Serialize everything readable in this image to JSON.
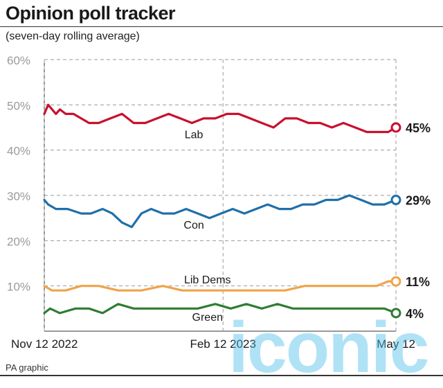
{
  "header": {
    "title": "Opinion poll tracker",
    "subtitle": "(seven-day rolling average)"
  },
  "footer": {
    "source": "PA graphic"
  },
  "watermark": {
    "text": "iconic"
  },
  "colors": {
    "lab": "#c8102e",
    "con": "#1f6fa8",
    "lib": "#f0a34a",
    "green": "#2e7d32"
  },
  "chart_data": {
    "type": "line",
    "title": "Opinion poll tracker",
    "subtitle": "(seven-day rolling average)",
    "ylim": [
      0,
      60
    ],
    "y_ticks": [
      {
        "value": 10,
        "label": "10%"
      },
      {
        "value": 20,
        "label": "20%"
      },
      {
        "value": 30,
        "label": "30%"
      },
      {
        "value": 40,
        "label": "40%"
      },
      {
        "value": 50,
        "label": "50%"
      },
      {
        "value": 60,
        "label": "60%"
      }
    ],
    "x_range": [
      "2022-11-12",
      "2023-05-12"
    ],
    "x_ticks": [
      {
        "date": "2022-11-12",
        "label": "Nov 12 2022"
      },
      {
        "date": "2023-02-12",
        "label": "Feb 12 2023"
      },
      {
        "date": "2023-05-12",
        "label": "May 12"
      }
    ],
    "grid": true,
    "series": [
      {
        "name": "Lab",
        "color": "#c8102e",
        "end_label": "45%",
        "x": [
          "2022-11-12",
          "2022-11-14",
          "2022-11-16",
          "2022-11-18",
          "2022-11-20",
          "2022-11-23",
          "2022-11-27",
          "2022-12-01",
          "2022-12-05",
          "2022-12-10",
          "2022-12-16",
          "2022-12-22",
          "2022-12-28",
          "2023-01-03",
          "2023-01-09",
          "2023-01-15",
          "2023-01-21",
          "2023-01-27",
          "2023-02-02",
          "2023-02-08",
          "2023-02-14",
          "2023-02-20",
          "2023-02-26",
          "2023-03-04",
          "2023-03-10",
          "2023-03-16",
          "2023-03-22",
          "2023-03-28",
          "2023-04-03",
          "2023-04-09",
          "2023-04-15",
          "2023-04-21",
          "2023-04-27",
          "2023-05-03",
          "2023-05-08",
          "2023-05-12"
        ],
        "y": [
          48,
          50,
          49,
          48,
          49,
          48,
          48,
          47,
          46,
          46,
          47,
          48,
          46,
          46,
          47,
          48,
          47,
          46,
          47,
          47,
          48,
          48,
          47,
          46,
          45,
          47,
          47,
          46,
          46,
          45,
          46,
          45,
          44,
          44,
          44,
          45
        ]
      },
      {
        "name": "Con",
        "color": "#1f6fa8",
        "end_label": "29%",
        "x": [
          "2022-11-12",
          "2022-11-14",
          "2022-11-18",
          "2022-11-24",
          "2022-12-01",
          "2022-12-06",
          "2022-12-12",
          "2022-12-17",
          "2022-12-22",
          "2022-12-27",
          "2023-01-01",
          "2023-01-06",
          "2023-01-12",
          "2023-01-18",
          "2023-01-24",
          "2023-01-30",
          "2023-02-05",
          "2023-02-11",
          "2023-02-17",
          "2023-02-23",
          "2023-03-01",
          "2023-03-07",
          "2023-03-13",
          "2023-03-19",
          "2023-03-25",
          "2023-03-31",
          "2023-04-06",
          "2023-04-12",
          "2023-04-18",
          "2023-04-24",
          "2023-04-30",
          "2023-05-06",
          "2023-05-12"
        ],
        "y": [
          29,
          28,
          27,
          27,
          26,
          26,
          27,
          26,
          24,
          23,
          26,
          27,
          26,
          26,
          27,
          26,
          25,
          26,
          27,
          26,
          27,
          28,
          27,
          27,
          28,
          28,
          29,
          29,
          30,
          29,
          28,
          28,
          29
        ]
      },
      {
        "name": "Lib Dems",
        "color": "#f0a34a",
        "end_label": "11%",
        "x": [
          "2022-11-12",
          "2022-11-16",
          "2022-11-23",
          "2022-12-01",
          "2022-12-10",
          "2022-12-20",
          "2023-01-01",
          "2023-01-12",
          "2023-01-22",
          "2023-02-01",
          "2023-02-12",
          "2023-02-24",
          "2023-03-06",
          "2023-03-16",
          "2023-03-26",
          "2023-04-05",
          "2023-04-15",
          "2023-04-25",
          "2023-05-02",
          "2023-05-08",
          "2023-05-12"
        ],
        "y": [
          10,
          9,
          9,
          10,
          10,
          9,
          9,
          10,
          9,
          9,
          9,
          9,
          9,
          9,
          10,
          10,
          10,
          10,
          10,
          11,
          11
        ]
      },
      {
        "name": "Green",
        "color": "#2e7d32",
        "end_label": "4%",
        "x": [
          "2022-11-12",
          "2022-11-15",
          "2022-11-20",
          "2022-11-28",
          "2022-12-05",
          "2022-12-12",
          "2022-12-20",
          "2022-12-28",
          "2023-01-05",
          "2023-01-14",
          "2023-01-22",
          "2023-01-30",
          "2023-02-08",
          "2023-02-16",
          "2023-02-24",
          "2023-03-04",
          "2023-03-12",
          "2023-03-20",
          "2023-03-28",
          "2023-04-05",
          "2023-04-13",
          "2023-04-21",
          "2023-04-29",
          "2023-05-06",
          "2023-05-12"
        ],
        "y": [
          4,
          5,
          4,
          5,
          5,
          4,
          6,
          5,
          5,
          5,
          5,
          5,
          6,
          5,
          6,
          5,
          6,
          5,
          5,
          5,
          5,
          5,
          5,
          5,
          4
        ]
      }
    ]
  }
}
